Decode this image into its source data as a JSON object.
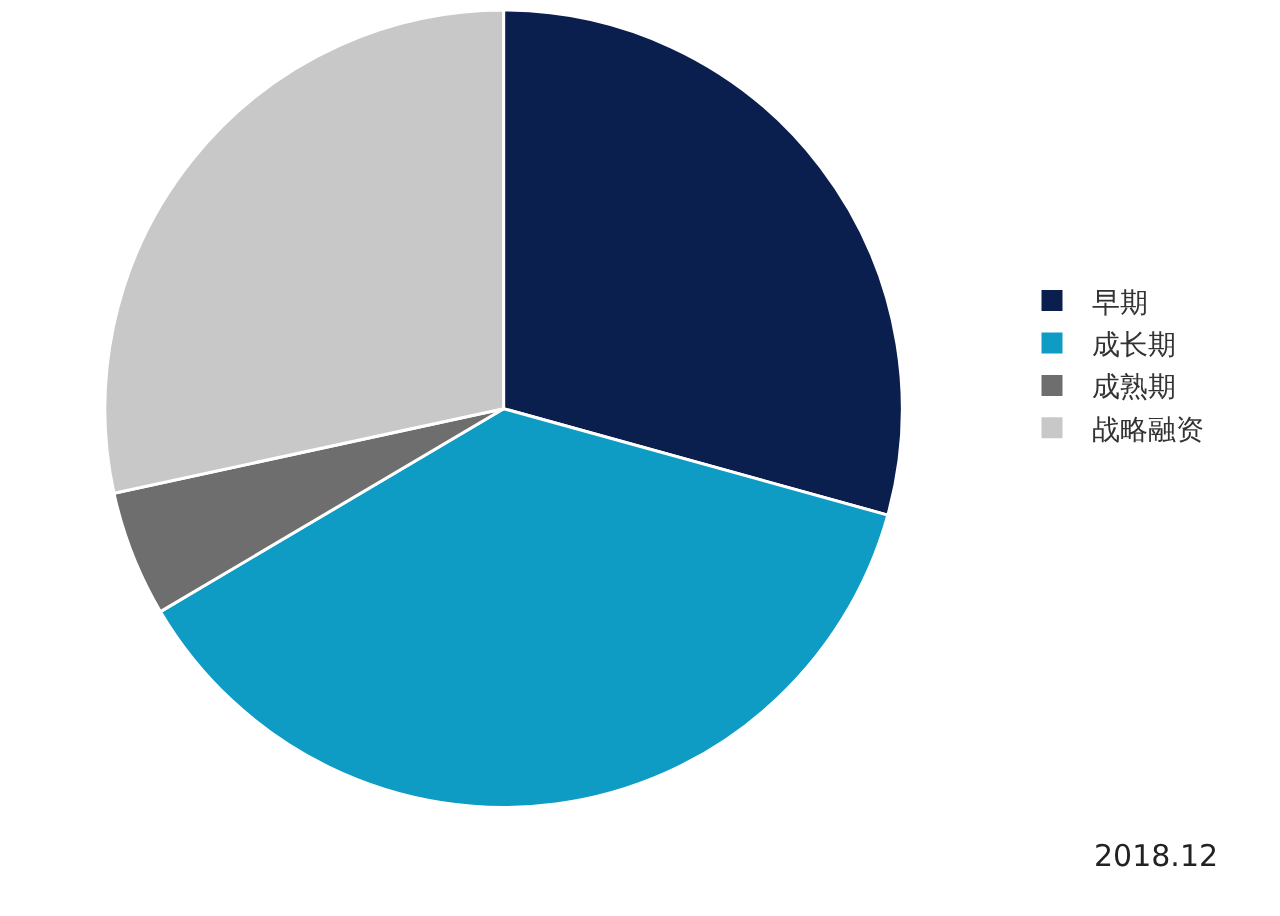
{
  "chart_data": {
    "type": "pie",
    "categories": [
      "早期",
      "成长期",
      "成熟期",
      "战略融资"
    ],
    "values": [
      29.3,
      37.2,
      5.1,
      28.4
    ],
    "colors": [
      "#0b1f4f",
      "#0e9bc4",
      "#6e6e6e",
      "#c8c8c8"
    ],
    "legend": "right",
    "annotations": [
      "2018.12"
    ]
  }
}
